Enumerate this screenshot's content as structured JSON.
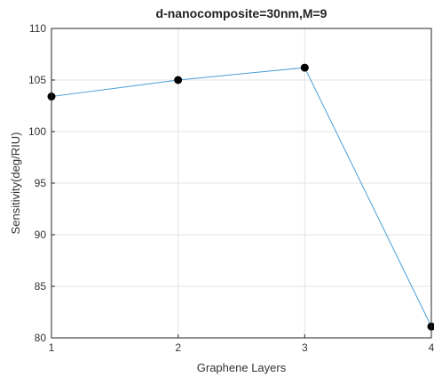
{
  "chart_data": {
    "type": "line",
    "title": "d-nanocomposite=30nm,M=9",
    "xlabel": "Graphene Layers",
    "ylabel": "Sensitivity(deg/RIU)",
    "x": [
      1,
      2,
      3,
      4
    ],
    "series": [
      {
        "values": [
          103.4,
          105.0,
          106.2,
          81.1
        ],
        "color": "#4a9fd8",
        "marker_color": "#000000"
      }
    ],
    "xlim": [
      1,
      4
    ],
    "ylim": [
      80,
      110
    ],
    "xticks": [
      "1",
      "2",
      "3",
      "4"
    ],
    "yticks": [
      "80",
      "85",
      "90",
      "95",
      "100",
      "105",
      "110"
    ],
    "grid": true
  }
}
